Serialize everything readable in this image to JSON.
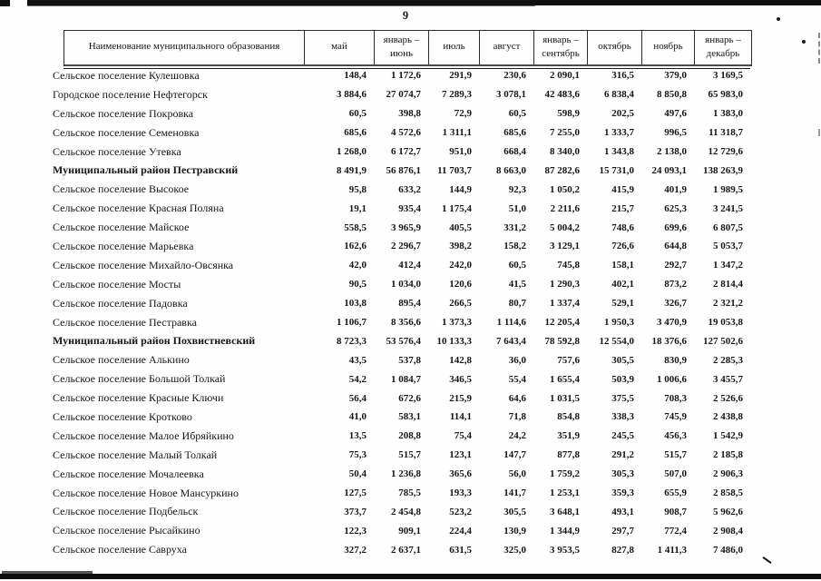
{
  "page": {
    "number": "9"
  },
  "colors": {
    "ink": "#161616",
    "paper": "#fefefe",
    "scan_bar": "#101010"
  },
  "table": {
    "columns": [
      {
        "label": "Наименование муниципального образования"
      },
      {
        "label": "май"
      },
      {
        "label": "январь –\nиюнь"
      },
      {
        "label": "июль"
      },
      {
        "label": "август"
      },
      {
        "label": "январь –\nсентябрь"
      },
      {
        "label": "октябрь"
      },
      {
        "label": "ноябрь"
      },
      {
        "label": "январь –\nдекабрь"
      }
    ],
    "rows": [
      {
        "name": "Сельское поселение Кулешовка",
        "bold": false,
        "values": [
          "148,4",
          "1 172,6",
          "291,9",
          "230,6",
          "2 090,1",
          "316,5",
          "379,0",
          "3 169,5"
        ]
      },
      {
        "name": "Городское поселение Нефтегорск",
        "bold": false,
        "values": [
          "3 884,6",
          "27 074,7",
          "7 289,3",
          "3 078,1",
          "42 483,6",
          "6 838,4",
          "8 850,8",
          "65 983,0"
        ]
      },
      {
        "name": "Сельское поселение Покровка",
        "bold": false,
        "values": [
          "60,5",
          "398,8",
          "72,9",
          "60,5",
          "598,9",
          "202,5",
          "497,6",
          "1 383,0"
        ]
      },
      {
        "name": "Сельское поселение Семеновка",
        "bold": false,
        "values": [
          "685,6",
          "4 572,6",
          "1 311,1",
          "685,6",
          "7 255,0",
          "1 333,7",
          "996,5",
          "11 318,7"
        ]
      },
      {
        "name": "Сельское поселение Утевка",
        "bold": false,
        "values": [
          "1 268,0",
          "6 172,7",
          "951,0",
          "668,4",
          "8 340,0",
          "1 343,8",
          "2 138,0",
          "12 729,6"
        ]
      },
      {
        "name": "Муниципальный район Пестравский",
        "bold": true,
        "values": [
          "8 491,9",
          "56 876,1",
          "11 703,7",
          "8 663,0",
          "87 282,6",
          "15 731,0",
          "24 093,1",
          "138 263,9"
        ]
      },
      {
        "name": "Сельское поселение Высокое",
        "bold": false,
        "values": [
          "95,8",
          "633,2",
          "144,9",
          "92,3",
          "1 050,2",
          "415,9",
          "401,9",
          "1 989,5"
        ]
      },
      {
        "name": "Сельское поселение Красная Поляна",
        "bold": false,
        "values": [
          "19,1",
          "935,4",
          "1 175,4",
          "51,0",
          "2 211,6",
          "215,7",
          "625,3",
          "3 241,5"
        ]
      },
      {
        "name": "Сельское поселение Майское",
        "bold": false,
        "values": [
          "558,5",
          "3 965,9",
          "405,5",
          "331,2",
          "5 004,2",
          "748,6",
          "699,6",
          "6 807,5"
        ]
      },
      {
        "name": "Сельское поселение Марьевка",
        "bold": false,
        "values": [
          "162,6",
          "2 296,7",
          "398,2",
          "158,2",
          "3 129,1",
          "726,6",
          "644,8",
          "5 053,7"
        ]
      },
      {
        "name": "Сельское поселение Михайло-Овсянка",
        "bold": false,
        "values": [
          "42,0",
          "412,4",
          "242,0",
          "60,5",
          "745,8",
          "158,1",
          "292,7",
          "1 347,2"
        ]
      },
      {
        "name": "Сельское поселение Мосты",
        "bold": false,
        "values": [
          "90,5",
          "1 034,0",
          "120,6",
          "41,5",
          "1 290,3",
          "402,1",
          "873,2",
          "2 814,4"
        ]
      },
      {
        "name": "Сельское поселение Падовка",
        "bold": false,
        "values": [
          "103,8",
          "895,4",
          "266,5",
          "80,7",
          "1 337,4",
          "529,1",
          "326,7",
          "2 321,2"
        ]
      },
      {
        "name": "Сельское поселение Пестравка",
        "bold": false,
        "values": [
          "1 106,7",
          "8 356,6",
          "1 373,3",
          "1 114,6",
          "12 205,4",
          "1 950,3",
          "3 470,9",
          "19 053,8"
        ]
      },
      {
        "name": "Муниципальный район Похвистневский",
        "bold": true,
        "values": [
          "8 723,3",
          "53 576,4",
          "10 133,3",
          "7 643,4",
          "78 592,8",
          "12 554,0",
          "18 376,6",
          "127 502,6"
        ]
      },
      {
        "name": "Сельское поселение Алькино",
        "bold": false,
        "values": [
          "43,5",
          "537,8",
          "142,8",
          "36,0",
          "757,6",
          "305,5",
          "830,9",
          "2 285,3"
        ]
      },
      {
        "name": "Сельское поселение Большой Толкай",
        "bold": false,
        "values": [
          "54,2",
          "1 084,7",
          "346,5",
          "55,4",
          "1 655,4",
          "503,9",
          "1 006,6",
          "3 455,7"
        ]
      },
      {
        "name": "Сельское поселение Красные Ключи",
        "bold": false,
        "values": [
          "56,4",
          "672,6",
          "215,9",
          "64,6",
          "1 031,5",
          "375,5",
          "708,3",
          "2 526,6"
        ]
      },
      {
        "name": "Сельское поселение Кротково",
        "bold": false,
        "values": [
          "41,0",
          "583,1",
          "114,1",
          "71,8",
          "854,8",
          "338,3",
          "745,9",
          "2 438,8"
        ]
      },
      {
        "name": "Сельское поселение Малое Ибряйкино",
        "bold": false,
        "values": [
          "13,5",
          "208,8",
          "75,4",
          "24,2",
          "351,9",
          "245,5",
          "456,3",
          "1 542,9"
        ]
      },
      {
        "name": "Сельское поселение Малый Толкай",
        "bold": false,
        "values": [
          "75,3",
          "515,7",
          "123,1",
          "147,7",
          "877,8",
          "291,2",
          "515,7",
          "2 185,8"
        ]
      },
      {
        "name": "Сельское поселение Мочалеевка",
        "bold": false,
        "values": [
          "50,4",
          "1 236,8",
          "365,6",
          "56,0",
          "1 759,2",
          "305,3",
          "507,0",
          "2 906,3"
        ]
      },
      {
        "name": "Сельское поселение Новое Мансуркино",
        "bold": false,
        "values": [
          "127,5",
          "785,5",
          "193,3",
          "141,7",
          "1 253,1",
          "359,3",
          "655,9",
          "2 858,5"
        ]
      },
      {
        "name": "Сельское поселение Подбельск",
        "bold": false,
        "values": [
          "373,7",
          "2 454,8",
          "523,2",
          "305,5",
          "3 648,1",
          "493,1",
          "908,7",
          "5 962,6"
        ]
      },
      {
        "name": "Сельское поселение Рысайкино",
        "bold": false,
        "values": [
          "122,3",
          "909,1",
          "224,4",
          "130,9",
          "1 344,9",
          "297,7",
          "772,4",
          "2 908,4"
        ]
      },
      {
        "name": "Сельское поселение Савруха",
        "bold": false,
        "values": [
          "327,2",
          "2 637,1",
          "631,5",
          "325,0",
          "3 953,5",
          "827,8",
          "1 411,3",
          "7 486,0"
        ]
      }
    ]
  }
}
